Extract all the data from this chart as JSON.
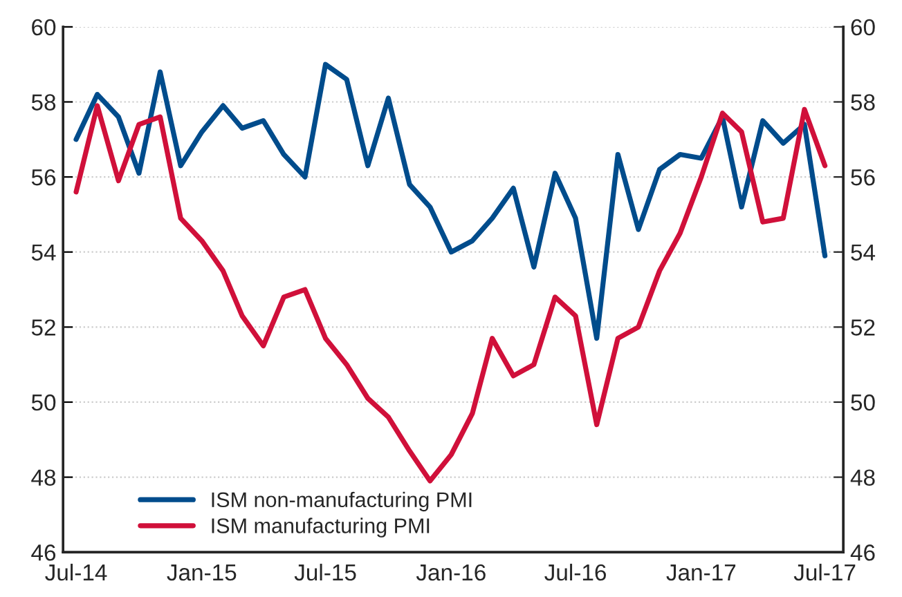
{
  "chart_data": {
    "type": "line",
    "x": [
      "2014-07",
      "2014-08",
      "2014-09",
      "2014-10",
      "2014-11",
      "2014-12",
      "2015-01",
      "2015-02",
      "2015-03",
      "2015-04",
      "2015-05",
      "2015-06",
      "2015-07",
      "2015-08",
      "2015-09",
      "2015-10",
      "2015-11",
      "2015-12",
      "2016-01",
      "2016-02",
      "2016-03",
      "2016-04",
      "2016-05",
      "2016-06",
      "2016-07",
      "2016-08",
      "2016-09",
      "2016-10",
      "2016-11",
      "2016-12",
      "2017-01",
      "2017-02",
      "2017-03",
      "2017-04",
      "2017-05",
      "2017-06",
      "2017-07"
    ],
    "series": [
      {
        "name": "ISM non-manufacturing PMI",
        "color": "#004c8c",
        "values": [
          57.0,
          58.2,
          57.6,
          56.1,
          58.8,
          56.3,
          57.2,
          57.9,
          57.3,
          57.5,
          56.6,
          56.0,
          59.0,
          58.6,
          56.3,
          58.1,
          55.8,
          55.2,
          54.0,
          54.3,
          54.9,
          55.7,
          53.6,
          56.1,
          54.9,
          51.7,
          56.6,
          54.6,
          56.2,
          56.6,
          56.5,
          57.6,
          55.2,
          57.5,
          56.9,
          57.4,
          53.9
        ]
      },
      {
        "name": "ISM manufacturing PMI",
        "color": "#d0103a",
        "values": [
          55.6,
          57.9,
          55.9,
          57.4,
          57.6,
          54.9,
          54.3,
          53.5,
          52.3,
          51.5,
          52.8,
          53.0,
          51.7,
          51.0,
          50.1,
          49.6,
          48.7,
          47.9,
          48.6,
          49.7,
          51.7,
          50.7,
          51.0,
          52.8,
          52.3,
          49.4,
          51.7,
          52.0,
          53.5,
          54.5,
          56.0,
          57.7,
          57.2,
          54.8,
          54.9,
          57.8,
          56.3
        ]
      }
    ],
    "xlim": [
      "2014-06-12",
      "2017-07-28"
    ],
    "xticks": [
      {
        "value": "2014-07",
        "label": "Jul-14"
      },
      {
        "value": "2015-01",
        "label": "Jan-15"
      },
      {
        "value": "2015-07",
        "label": "Jul-15"
      },
      {
        "value": "2016-01",
        "label": "Jan-16"
      },
      {
        "value": "2016-07",
        "label": "Jul-16"
      },
      {
        "value": "2017-01",
        "label": "Jan-17"
      },
      {
        "value": "2017-07",
        "label": "Jul-17"
      }
    ],
    "ylim": [
      46,
      60
    ],
    "yticks": [
      46,
      48,
      50,
      52,
      54,
      56,
      58,
      60
    ],
    "y2lim": [
      46,
      60
    ],
    "y2ticks": [
      46,
      48,
      50,
      52,
      54,
      56,
      58,
      60
    ],
    "grid": "y",
    "legend": "bottom left",
    "marker": "none",
    "line_style": "solid"
  }
}
